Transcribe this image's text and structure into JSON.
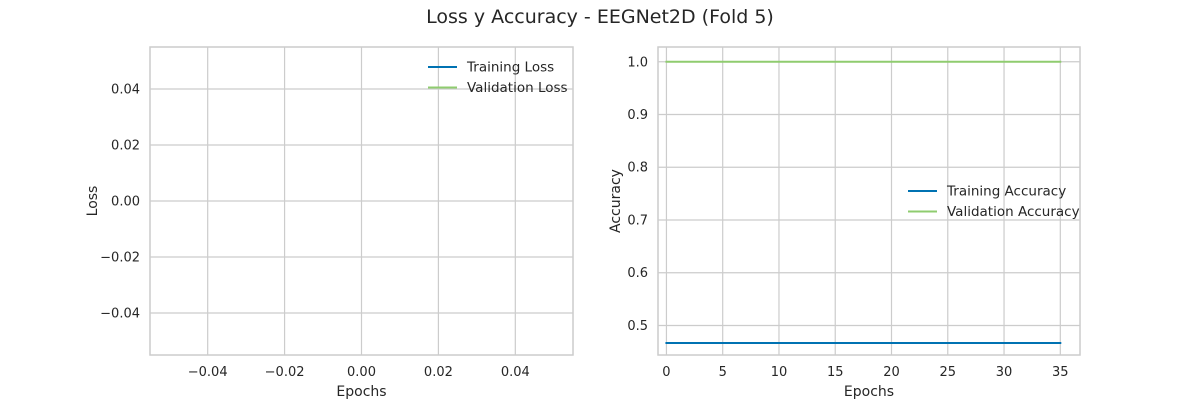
{
  "figure": {
    "title": "Loss y Accuracy - EEGNet2D (Fold 5)"
  },
  "chart_data": [
    {
      "type": "line",
      "xlabel": "Epochs",
      "ylabel": "Loss",
      "xlim": [
        -0.055,
        0.055
      ],
      "ylim": [
        -0.055,
        0.055
      ],
      "xticks": [
        -0.04,
        -0.02,
        0.0,
        0.02,
        0.04
      ],
      "xtick_labels": [
        "−0.04",
        "−0.02",
        "0.00",
        "0.02",
        "0.04"
      ],
      "yticks": [
        -0.04,
        -0.02,
        0.0,
        0.02,
        0.04
      ],
      "ytick_labels": [
        "−0.04",
        "−0.02",
        "0.00",
        "0.02",
        "0.04"
      ],
      "grid": true,
      "legend_position": "upper right",
      "series": [
        {
          "name": "Training Loss",
          "color": "#0072b2",
          "x": [],
          "y": []
        },
        {
          "name": "Validation Loss",
          "color": "#8fcc6f",
          "x": [],
          "y": []
        }
      ]
    },
    {
      "type": "line",
      "xlabel": "Epochs",
      "ylabel": "Accuracy",
      "xlim": [
        -0.75,
        36.75
      ],
      "ylim": [
        0.444,
        1.028
      ],
      "xticks": [
        0,
        5,
        10,
        15,
        20,
        25,
        30,
        35
      ],
      "xtick_labels": [
        "0",
        "5",
        "10",
        "15",
        "20",
        "25",
        "30",
        "35"
      ],
      "yticks": [
        0.5,
        0.6,
        0.7,
        0.8,
        0.9,
        1.0
      ],
      "ytick_labels": [
        "0.5",
        "0.6",
        "0.7",
        "0.8",
        "0.9",
        "1.0"
      ],
      "grid": true,
      "legend_position": "center right",
      "series": [
        {
          "name": "Training Accuracy",
          "color": "#0072b2",
          "x": [
            0,
            35
          ],
          "y": [
            0.4667,
            0.4667
          ]
        },
        {
          "name": "Validation Accuracy",
          "color": "#8fcc6f",
          "x": [
            0,
            35
          ],
          "y": [
            1.0,
            1.0
          ]
        }
      ]
    }
  ]
}
